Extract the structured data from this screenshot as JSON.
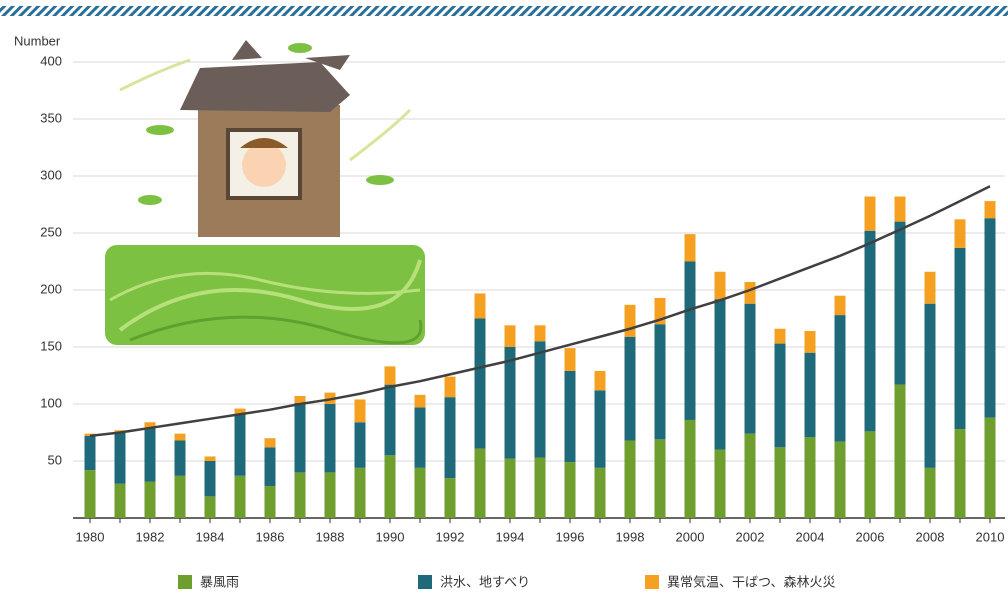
{
  "chart_data": {
    "type": "stacked-bar",
    "y_label": "Number",
    "categories": [
      "1980",
      null,
      "1982",
      null,
      "1984",
      null,
      "1986",
      null,
      "1988",
      null,
      "1990",
      null,
      "1992",
      null,
      "1994",
      null,
      "1996",
      null,
      "1998",
      null,
      "2000",
      null,
      "2002",
      null,
      "2004",
      null,
      "2006",
      null,
      "2008",
      null,
      "2010"
    ],
    "series": [
      {
        "name": "暴風雨",
        "color": "#6e9e2e",
        "values": [
          42,
          30,
          32,
          37,
          19,
          37,
          28,
          40,
          40,
          44,
          55,
          44,
          35,
          61,
          52,
          53,
          49,
          44,
          68,
          69,
          86,
          60,
          74,
          62,
          71,
          67,
          76,
          117,
          44,
          78,
          88
        ]
      },
      {
        "name": "洪水、地すべり",
        "color": "#1f6a7a",
        "values": [
          30,
          45,
          47,
          31,
          31,
          54,
          34,
          61,
          60,
          40,
          62,
          53,
          71,
          114,
          98,
          102,
          80,
          68,
          91,
          101,
          139,
          132,
          114,
          91,
          74,
          111,
          176,
          143,
          144,
          159,
          175
        ]
      },
      {
        "name": "異常気温、干ばつ、森林火災",
        "color": "#f5a020",
        "values": [
          2,
          2,
          5,
          6,
          4,
          5,
          8,
          6,
          10,
          20,
          16,
          11,
          18,
          22,
          19,
          14,
          20,
          17,
          28,
          23,
          24,
          24,
          19,
          13,
          19,
          17,
          30,
          22,
          28,
          25,
          15
        ]
      }
    ],
    "trend": {
      "color": "#404040",
      "values": [
        72,
        75,
        79,
        83,
        87,
        91,
        95,
        100,
        104,
        109,
        115,
        120,
        126,
        132,
        138,
        145,
        152,
        159,
        166,
        174,
        183,
        191,
        200,
        210,
        220,
        230,
        241,
        253,
        265,
        278,
        291
      ]
    },
    "ylim": [
      0,
      400
    ],
    "yticks": [
      50,
      100,
      150,
      200,
      250,
      300,
      350,
      400
    ],
    "grid": true
  }
}
